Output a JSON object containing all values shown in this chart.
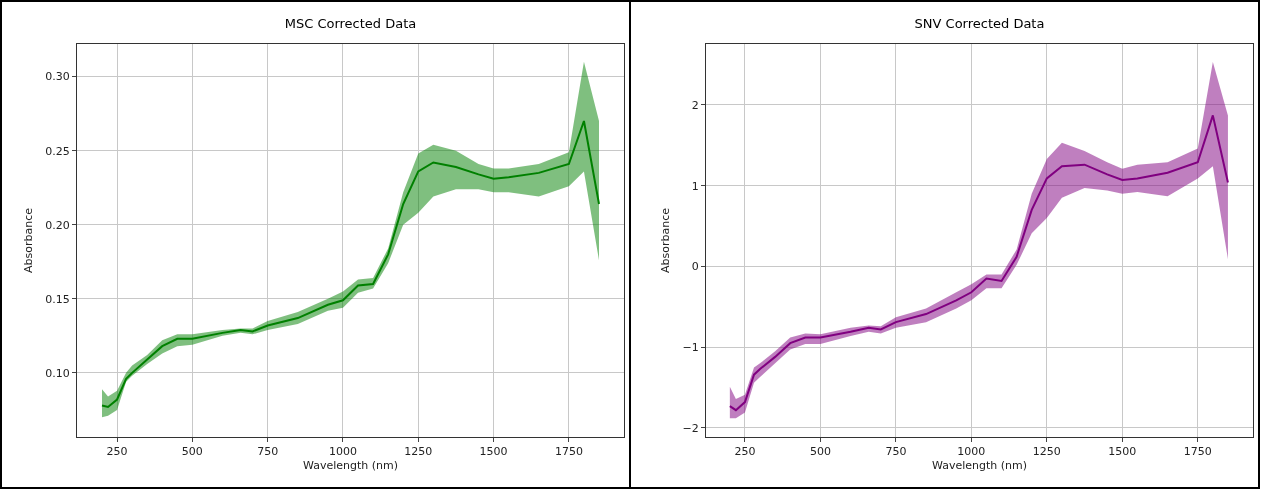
{
  "chart_data": [
    {
      "type": "line",
      "title": "MSC Corrected Data",
      "xlabel": "Wavelength (nm)",
      "ylabel": "Absorbance",
      "x": [
        200,
        220,
        250,
        280,
        300,
        350,
        400,
        450,
        500,
        600,
        660,
        700,
        750,
        850,
        950,
        1000,
        1050,
        1100,
        1150,
        1200,
        1250,
        1300,
        1375,
        1450,
        1500,
        1550,
        1650,
        1750,
        1800,
        1850
      ],
      "series": [
        {
          "color": "#008000",
          "values": [
            0.078,
            0.077,
            0.082,
            0.096,
            0.1,
            0.109,
            0.118,
            0.123,
            0.123,
            0.127,
            0.129,
            0.128,
            0.132,
            0.137,
            0.146,
            0.149,
            0.159,
            0.16,
            0.18,
            0.214,
            0.236,
            0.242,
            0.239,
            0.234,
            0.231,
            0.232,
            0.235,
            0.241,
            0.27,
            0.214
          ],
          "lower": [
            0.07,
            0.071,
            0.075,
            0.094,
            0.098,
            0.106,
            0.113,
            0.118,
            0.119,
            0.125,
            0.127,
            0.126,
            0.129,
            0.133,
            0.142,
            0.144,
            0.154,
            0.157,
            0.174,
            0.2,
            0.208,
            0.219,
            0.224,
            0.224,
            0.222,
            0.222,
            0.219,
            0.226,
            0.236,
            0.176
          ],
          "upper": [
            0.089,
            0.084,
            0.088,
            0.1,
            0.105,
            0.112,
            0.122,
            0.126,
            0.126,
            0.129,
            0.13,
            0.13,
            0.135,
            0.141,
            0.15,
            0.155,
            0.163,
            0.164,
            0.184,
            0.222,
            0.248,
            0.254,
            0.25,
            0.241,
            0.238,
            0.238,
            0.241,
            0.249,
            0.31,
            0.27
          ]
        }
      ],
      "xlim": [
        117,
        1933
      ],
      "xticks": [
        250,
        500,
        750,
        1000,
        1250,
        1500,
        1750
      ],
      "ylim": [
        0.0567,
        0.322
      ],
      "yticks": [
        {
          "value": 0.1,
          "label": "0.10"
        },
        {
          "value": 0.15,
          "label": "0.15"
        },
        {
          "value": 0.2,
          "label": "0.20"
        },
        {
          "value": 0.25,
          "label": "0.25"
        },
        {
          "value": 0.3,
          "label": "0.30"
        }
      ],
      "grid": true,
      "marker": "none",
      "line_style": "solid"
    },
    {
      "type": "line",
      "title": "SNV Corrected Data",
      "xlabel": "Wavelength (nm)",
      "ylabel": "Absorbance",
      "x": [
        200,
        220,
        250,
        280,
        300,
        350,
        400,
        450,
        500,
        600,
        660,
        700,
        750,
        850,
        950,
        1000,
        1050,
        1100,
        1150,
        1200,
        1250,
        1300,
        1375,
        1450,
        1500,
        1550,
        1650,
        1750,
        1800,
        1850
      ],
      "series": [
        {
          "color": "#800080",
          "values": [
            -1.73,
            -1.78,
            -1.68,
            -1.34,
            -1.27,
            -1.12,
            -0.95,
            -0.88,
            -0.88,
            -0.81,
            -0.76,
            -0.78,
            -0.69,
            -0.59,
            -0.42,
            -0.32,
            -0.15,
            -0.18,
            0.12,
            0.7,
            1.09,
            1.24,
            1.26,
            1.14,
            1.07,
            1.09,
            1.16,
            1.29,
            1.87,
            1.04
          ],
          "lower": [
            -1.88,
            -1.88,
            -1.81,
            -1.44,
            -1.37,
            -1.2,
            -1.03,
            -0.96,
            -0.96,
            -0.86,
            -0.81,
            -0.83,
            -0.76,
            -0.69,
            -0.52,
            -0.42,
            -0.27,
            -0.27,
            0.02,
            0.41,
            0.6,
            0.85,
            0.97,
            0.94,
            0.9,
            0.92,
            0.87,
            1.09,
            1.24,
            0.09
          ],
          "upper": [
            -1.49,
            -1.64,
            -1.59,
            -1.25,
            -1.2,
            -1.05,
            -0.88,
            -0.83,
            -0.84,
            -0.76,
            -0.73,
            -0.74,
            -0.63,
            -0.52,
            -0.32,
            -0.22,
            -0.1,
            -0.1,
            0.21,
            0.9,
            1.33,
            1.53,
            1.43,
            1.29,
            1.21,
            1.26,
            1.29,
            1.46,
            2.53,
            1.87
          ]
        }
      ],
      "xlim": [
        121,
        1933
      ],
      "xticks": [
        250,
        500,
        750,
        1000,
        1250,
        1500,
        1750
      ],
      "ylim": [
        -2.112,
        2.754
      ],
      "yticks": [
        {
          "value": -2,
          "label": "−2"
        },
        {
          "value": -1,
          "label": "−1"
        },
        0,
        1,
        2
      ],
      "grid": true,
      "marker": "none",
      "line_style": "solid"
    }
  ]
}
